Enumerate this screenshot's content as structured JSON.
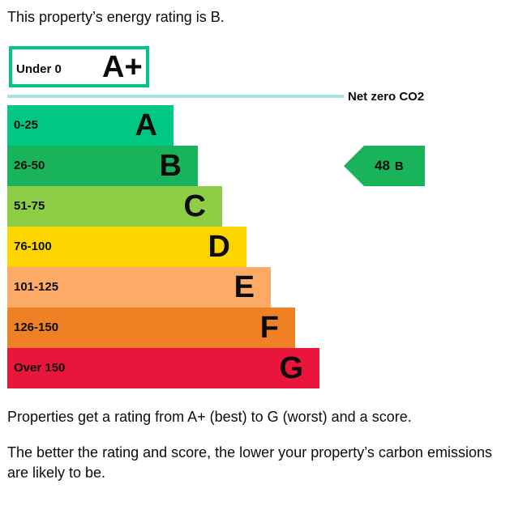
{
  "intro": "This property’s energy rating is B.",
  "chart_data": {
    "type": "bar",
    "title": "",
    "categories": [
      "A+",
      "A",
      "B",
      "C",
      "D",
      "E",
      "F",
      "G"
    ],
    "ranges": [
      "Under 0",
      "0-25",
      "26-50",
      "51-75",
      "76-100",
      "101-125",
      "126-150",
      "Over 150"
    ],
    "colors": [
      "#00c781",
      "#00c781",
      "#19b459",
      "#8dce46",
      "#ffd500",
      "#fcaa65",
      "#ef8023",
      "#e9153b"
    ],
    "net_zero_label": "Net zero CO2",
    "current": {
      "score": "48",
      "rating": "B",
      "color": "#19b459"
    }
  },
  "descriptions": [
    "Properties get a rating from A+ (best) to G (worst) and a score.",
    "The better the rating and score, the lower your property’s carbon emissions are likely to be."
  ]
}
